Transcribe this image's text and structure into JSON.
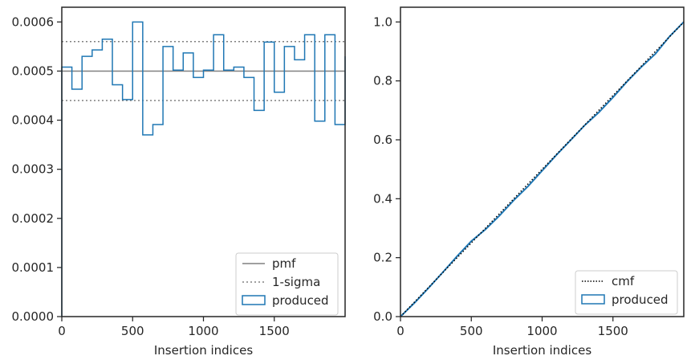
{
  "chart_data": [
    {
      "type": "step",
      "xlabel": "Insertion indices",
      "ylabel": "",
      "xlim": [
        0,
        2000
      ],
      "ylim": [
        0,
        0.00063
      ],
      "xticks": [
        0,
        500,
        1000,
        1500
      ],
      "xtick_labels": [
        "0",
        "500",
        "1000",
        "1500"
      ],
      "yticks": [
        0,
        0.0001,
        0.0002,
        0.0003,
        0.0004,
        0.0005,
        0.0006
      ],
      "ytick_labels": [
        "0.0000",
        "0.0001",
        "0.0002",
        "0.0003",
        "0.0004",
        "0.0005",
        "0.0006"
      ],
      "grid": false,
      "legend_placement": "lower right",
      "legend": [
        "pmf",
        "1-sigma",
        "produced"
      ],
      "pmf": 0.0005,
      "sigma_band": [
        0.00044,
        0.00056
      ],
      "bin_edges": [
        0,
        71.4,
        142.9,
        214.3,
        285.7,
        357.1,
        428.6,
        500,
        571.4,
        642.9,
        714.3,
        785.7,
        857.1,
        928.6,
        1000,
        1071.4,
        1142.9,
        1214.3,
        1285.7,
        1357.1,
        1428.6,
        1500,
        1571.4,
        1642.9,
        1714.3,
        1785.7,
        1857.1,
        1928.6,
        2000
      ],
      "counts": [
        0.000508,
        0.000463,
        0.00053,
        0.000543,
        0.000565,
        0.000472,
        0.000442,
        0.0006,
        0.00037,
        0.000391,
        0.00055,
        0.000502,
        0.000537,
        0.000487,
        0.000502,
        0.000574,
        0.000502,
        0.000508,
        0.000487,
        0.00042,
        0.000559,
        0.000457,
        0.00055,
        0.000523,
        0.000574,
        0.000398,
        0.000574,
        0.000391,
        0.00053
      ],
      "colors": {
        "pmf": "#808080",
        "sigma": "#808080",
        "produced": "#1f77b4"
      }
    },
    {
      "type": "line",
      "xlabel": "Insertion indices",
      "ylabel": "",
      "xlim": [
        0,
        2000
      ],
      "ylim": [
        0,
        1.05
      ],
      "xticks": [
        0,
        500,
        1000,
        1500
      ],
      "xtick_labels": [
        "0",
        "500",
        "1000",
        "1500"
      ],
      "yticks": [
        0,
        0.2,
        0.4,
        0.6,
        0.8,
        1.0
      ],
      "ytick_labels": [
        "0.0",
        "0.2",
        "0.4",
        "0.6",
        "0.8",
        "1.0"
      ],
      "grid": false,
      "legend_placement": "lower right",
      "legend": [
        "cmf",
        "produced"
      ],
      "cmf": {
        "x": [
          0,
          2000
        ],
        "y": [
          0,
          1
        ]
      },
      "produced": {
        "x": [
          0,
          100,
          200,
          300,
          400,
          500,
          600,
          700,
          800,
          900,
          1000,
          1100,
          1200,
          1300,
          1400,
          1500,
          1600,
          1700,
          1800,
          1900,
          2000
        ],
        "y": [
          0,
          0.047,
          0.098,
          0.151,
          0.205,
          0.256,
          0.296,
          0.343,
          0.395,
          0.442,
          0.495,
          0.548,
          0.598,
          0.649,
          0.693,
          0.744,
          0.798,
          0.847,
          0.892,
          0.951,
          1.0
        ]
      },
      "colors": {
        "cmf": "#000000",
        "produced": "#1f77b4"
      }
    }
  ]
}
